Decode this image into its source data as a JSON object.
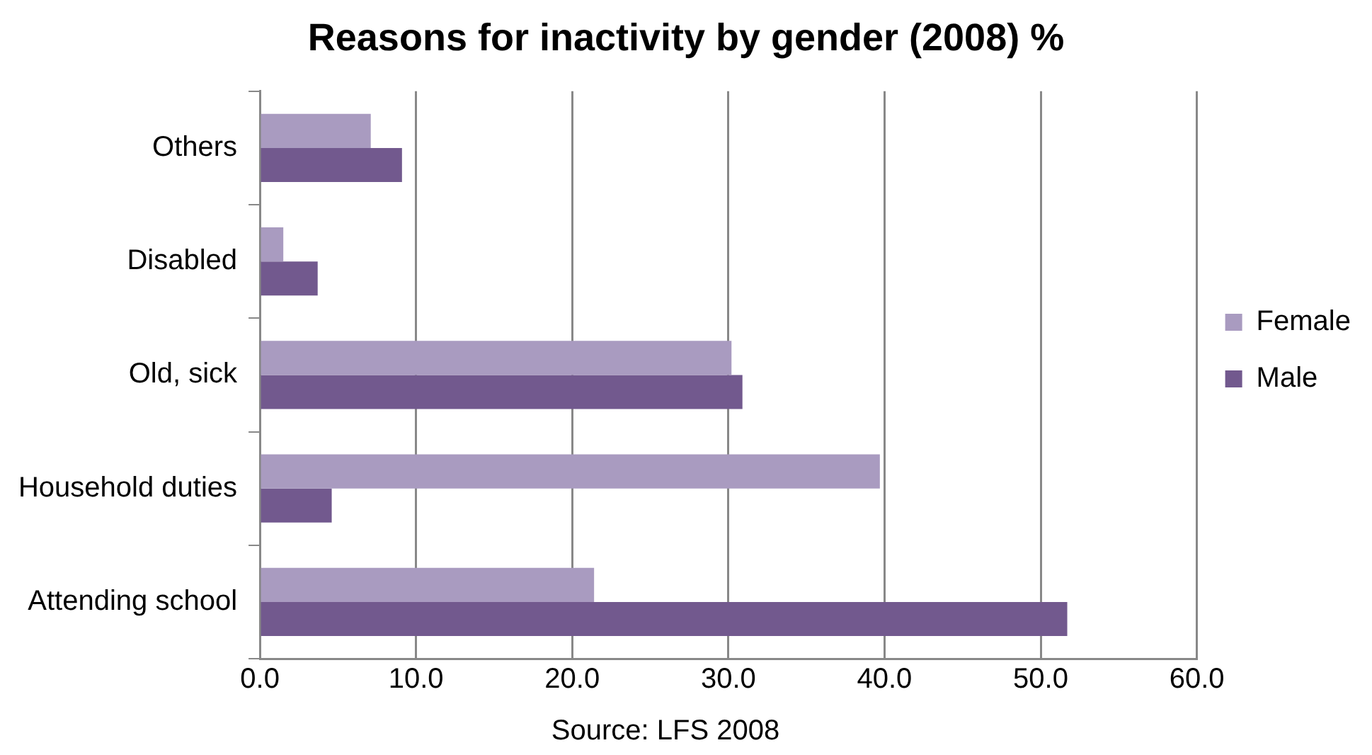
{
  "chart_data": {
    "type": "bar",
    "orientation": "horizontal",
    "title": "Reasons for inactivity by gender (2008) %",
    "categories": [
      "Others",
      "Disabled",
      "Old, sick",
      "Household duties",
      "Attending school"
    ],
    "series": [
      {
        "name": "Female",
        "color": "#a99bc0",
        "values": [
          7.1,
          1.5,
          30.2,
          39.7,
          21.4
        ]
      },
      {
        "name": "Male",
        "color": "#72598e",
        "values": [
          9.1,
          3.7,
          30.9,
          4.6,
          51.7
        ]
      }
    ],
    "xlim": [
      0,
      60
    ],
    "xticks": [
      {
        "value": 0,
        "label": "0.0"
      },
      {
        "value": 10,
        "label": "10.0"
      },
      {
        "value": 20,
        "label": "20.0"
      },
      {
        "value": 30,
        "label": "30.0"
      },
      {
        "value": 40,
        "label": "40.0"
      },
      {
        "value": 50,
        "label": "50.0"
      },
      {
        "value": 60,
        "label": "60.0"
      }
    ],
    "grid": "x",
    "legend": "right",
    "annotations": [
      "Source: LFS 2008"
    ]
  }
}
